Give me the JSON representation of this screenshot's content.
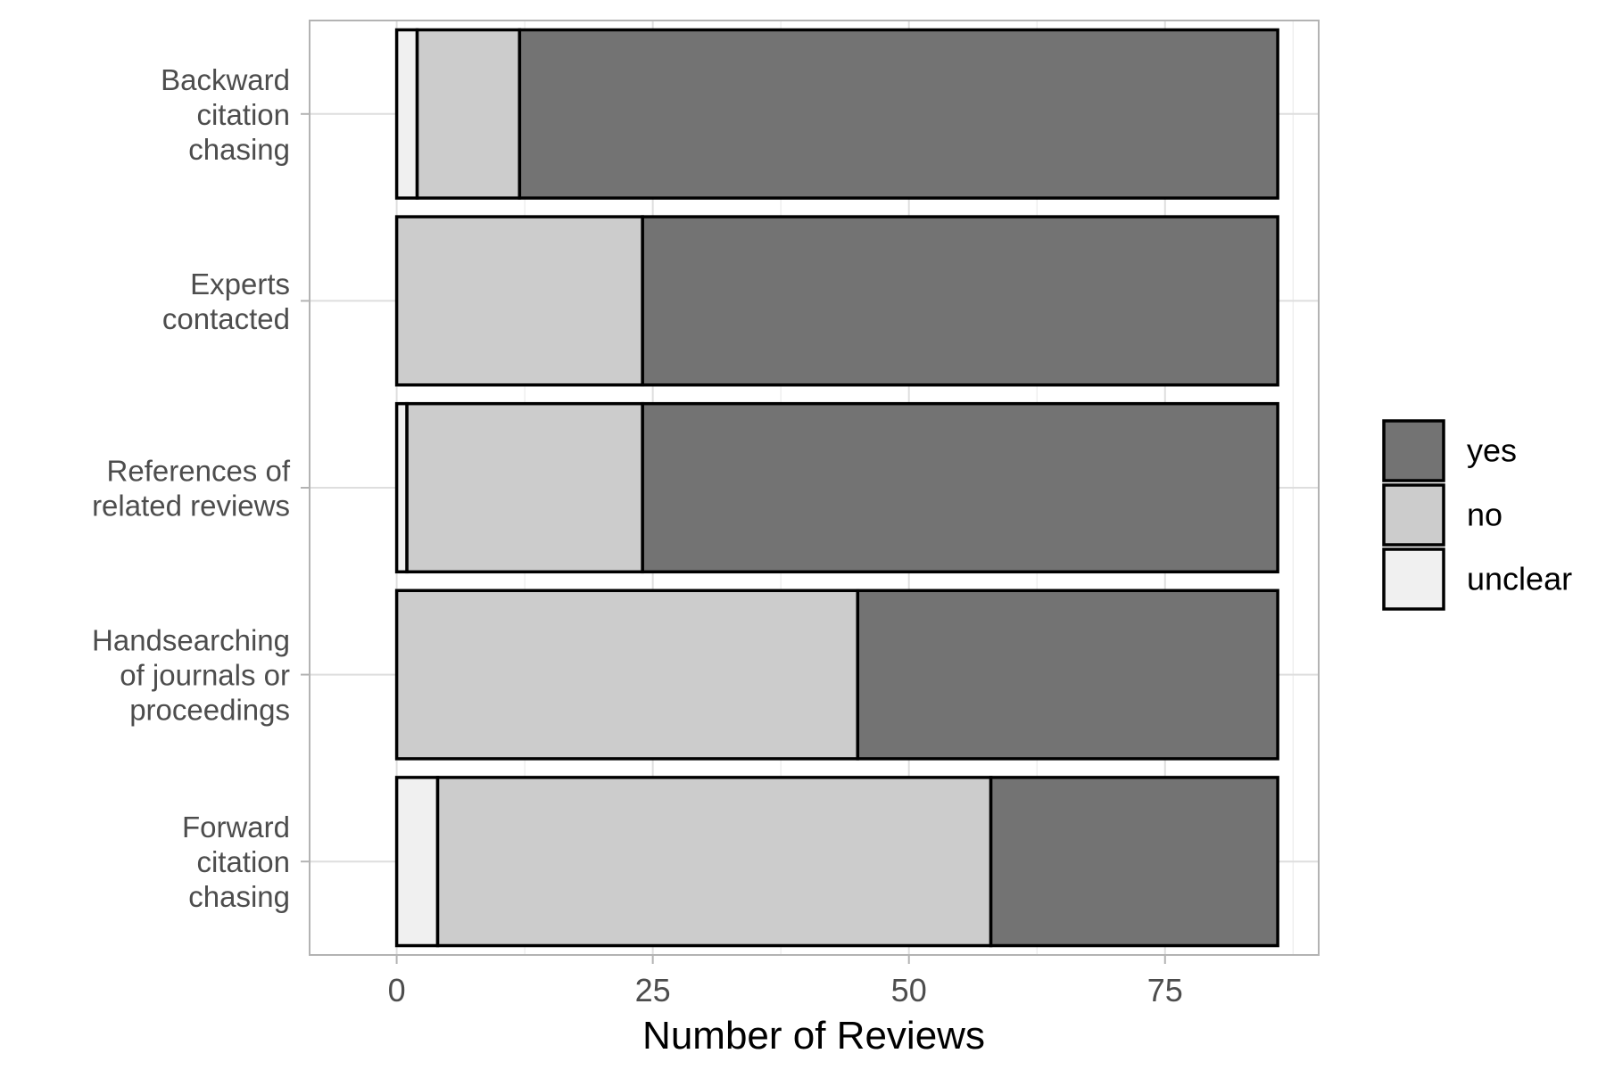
{
  "chart_data": {
    "type": "bar",
    "orientation": "horizontal",
    "stacked": true,
    "title": "",
    "xlabel": "Number of Reviews",
    "ylabel": "",
    "xlim": [
      -8.5,
      90
    ],
    "x_ticks": [
      0,
      25,
      50,
      75
    ],
    "grid": true,
    "legend_position": "right",
    "categories": [
      [
        "Backward",
        "citation",
        "chasing"
      ],
      [
        "Experts",
        "contacted"
      ],
      [
        "References of",
        "related reviews"
      ],
      [
        "Handsearching",
        "of journals or",
        "proceedings"
      ],
      [
        "Forward",
        "citation",
        "chasing"
      ]
    ],
    "series": [
      {
        "name": "unclear",
        "color": "#f0f0f0",
        "values": [
          2,
          0,
          1,
          0,
          4
        ]
      },
      {
        "name": "no",
        "color": "#cccccc",
        "values": [
          10,
          24,
          23,
          45,
          54
        ]
      },
      {
        "name": "yes",
        "color": "#737373",
        "values": [
          74,
          62,
          62,
          41,
          28
        ]
      }
    ],
    "legend_order": [
      "yes",
      "no",
      "unclear"
    ]
  }
}
